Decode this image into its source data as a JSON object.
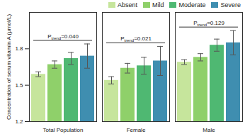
{
  "chart_data": {
    "type": "bar",
    "categories": [
      "Total Population",
      "Female",
      "Male"
    ],
    "series": [
      {
        "name": "Absent",
        "color": "#c6e59c",
        "values": [
          1.59,
          1.54,
          1.69
        ],
        "errors": [
          0.02,
          0.03,
          0.02
        ]
      },
      {
        "name": "Mild",
        "color": "#8fd06a",
        "values": [
          1.67,
          1.64,
          1.73
        ],
        "errors": [
          0.03,
          0.04,
          0.03
        ]
      },
      {
        "name": "Moderate",
        "color": "#4fb872",
        "values": [
          1.72,
          1.66,
          1.83
        ],
        "errors": [
          0.05,
          0.07,
          0.05
        ]
      },
      {
        "name": "Severe",
        "color": "#3f8eb0",
        "values": [
          1.74,
          1.7,
          1.85
        ],
        "errors": [
          0.1,
          0.12,
          0.1
        ]
      }
    ],
    "y_label": "Concentration of serum vitamin A (μmol/L)",
    "ylim": [
      1.2,
      2.1
    ],
    "yticks": [
      1.2,
      1.5,
      1.8
    ],
    "legend": "top-right",
    "annotations": [
      {
        "category": "Total Population",
        "prefix": "P",
        "subscript": "trend",
        "text": "=0.040"
      },
      {
        "category": "Female",
        "prefix": "P",
        "subscript": "trend",
        "text": "=0.021"
      },
      {
        "category": "Male",
        "prefix": "P",
        "subscript": "trend",
        "text": "=0.129"
      }
    ]
  }
}
